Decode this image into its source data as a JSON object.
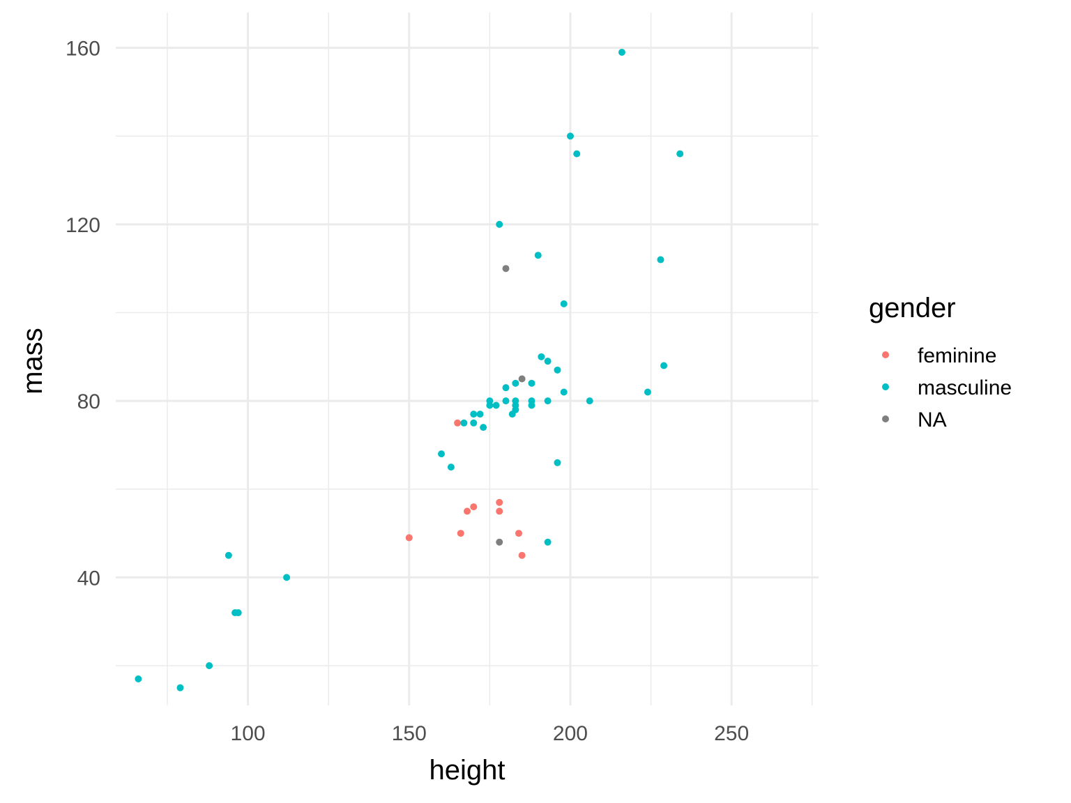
{
  "chart_data": {
    "type": "scatter",
    "xlabel": "height",
    "ylabel": "mass",
    "xlim": [
      59,
      277
    ],
    "ylim": [
      11,
      168
    ],
    "x_ticks": [
      100,
      150,
      200,
      250
    ],
    "y_ticks": [
      40,
      80,
      120,
      160
    ],
    "x_tick_labels": [
      "100",
      "150",
      "200",
      "250"
    ],
    "y_tick_labels": [
      "40",
      "80",
      "120",
      "160"
    ],
    "grid": true,
    "legend": {
      "title": "gender",
      "position": "right"
    },
    "series": [
      {
        "name": "feminine",
        "color": "#F8766D",
        "points": [
          [
            150,
            49
          ],
          [
            165,
            75
          ],
          [
            166,
            50
          ],
          [
            168,
            55
          ],
          [
            170,
            56
          ],
          [
            178,
            55
          ],
          [
            178,
            57
          ],
          [
            184,
            50
          ],
          [
            185,
            45
          ]
        ]
      },
      {
        "name": "masculine",
        "color": "#00BFC4",
        "points": [
          [
            66,
            17
          ],
          [
            79,
            15
          ],
          [
            88,
            20
          ],
          [
            94,
            45
          ],
          [
            96,
            32
          ],
          [
            97,
            32
          ],
          [
            112,
            40
          ],
          [
            160,
            68
          ],
          [
            163,
            65
          ],
          [
            167,
            75
          ],
          [
            170,
            77
          ],
          [
            170,
            75
          ],
          [
            172,
            77
          ],
          [
            173,
            74
          ],
          [
            175,
            79
          ],
          [
            175,
            80
          ],
          [
            177,
            79
          ],
          [
            178,
            120
          ],
          [
            180,
            80
          ],
          [
            180,
            83
          ],
          [
            182,
            77
          ],
          [
            183,
            78
          ],
          [
            183,
            79
          ],
          [
            183,
            80
          ],
          [
            183,
            84
          ],
          [
            188,
            79
          ],
          [
            188,
            80
          ],
          [
            188,
            84
          ],
          [
            190,
            113
          ],
          [
            191,
            90
          ],
          [
            193,
            89
          ],
          [
            193,
            80
          ],
          [
            193,
            48
          ],
          [
            196,
            87
          ],
          [
            196,
            66
          ],
          [
            198,
            102
          ],
          [
            198,
            82
          ],
          [
            200,
            140
          ],
          [
            202,
            136
          ],
          [
            206,
            80
          ],
          [
            216,
            159
          ],
          [
            224,
            82
          ],
          [
            228,
            112
          ],
          [
            229,
            88
          ],
          [
            234,
            136
          ]
        ]
      },
      {
        "name": "NA",
        "color": "#7F7F7F",
        "points": [
          [
            178,
            48
          ],
          [
            180,
            110
          ],
          [
            185,
            85
          ]
        ]
      }
    ]
  }
}
